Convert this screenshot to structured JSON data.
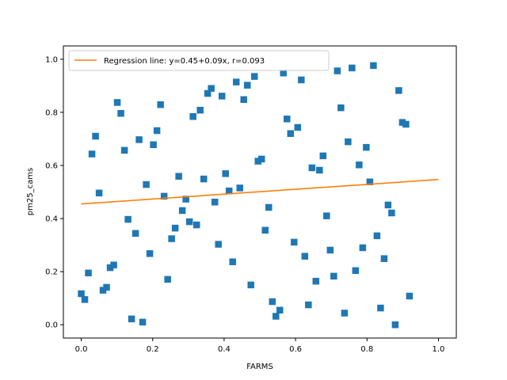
{
  "chart_data": {
    "type": "scatter",
    "xlabel": "FARMS",
    "ylabel": "pm25_cams",
    "xlim": [
      -0.05,
      1.05
    ],
    "ylim": [
      -0.05,
      1.05
    ],
    "xticks": [
      "0.0",
      "0.2",
      "0.4",
      "0.6",
      "0.8",
      "1.0"
    ],
    "yticks": [
      "0.0",
      "0.2",
      "0.4",
      "0.6",
      "0.8",
      "1.0"
    ],
    "grid": false,
    "legend_position": "top-left",
    "marker_color": "#1f77b4",
    "line_color": "#ff7f0e",
    "regression": {
      "label": "Regression line: y=0.45+0.09x, r=0.093",
      "intercept": 0.455,
      "slope": 0.092
    },
    "points": [
      {
        "x": 0.0,
        "y": 0.117
      },
      {
        "x": 0.01,
        "y": 0.095
      },
      {
        "x": 0.02,
        "y": 0.195
      },
      {
        "x": 0.03,
        "y": 0.643
      },
      {
        "x": 0.04,
        "y": 0.71
      },
      {
        "x": 0.05,
        "y": 0.496
      },
      {
        "x": 0.061,
        "y": 0.13
      },
      {
        "x": 0.071,
        "y": 0.141
      },
      {
        "x": 0.081,
        "y": 0.215
      },
      {
        "x": 0.091,
        "y": 0.225
      },
      {
        "x": 0.101,
        "y": 0.837
      },
      {
        "x": 0.111,
        "y": 0.796
      },
      {
        "x": 0.121,
        "y": 0.657
      },
      {
        "x": 0.131,
        "y": 0.397
      },
      {
        "x": 0.141,
        "y": 0.022
      },
      {
        "x": 0.152,
        "y": 0.344
      },
      {
        "x": 0.162,
        "y": 0.697
      },
      {
        "x": 0.172,
        "y": 0.01
      },
      {
        "x": 0.182,
        "y": 0.528
      },
      {
        "x": 0.192,
        "y": 0.268
      },
      {
        "x": 0.202,
        "y": 0.678
      },
      {
        "x": 0.212,
        "y": 0.731
      },
      {
        "x": 0.222,
        "y": 0.829
      },
      {
        "x": 0.232,
        "y": 0.484
      },
      {
        "x": 0.242,
        "y": 0.171
      },
      {
        "x": 0.253,
        "y": 0.324
      },
      {
        "x": 0.263,
        "y": 0.364
      },
      {
        "x": 0.273,
        "y": 0.559
      },
      {
        "x": 0.283,
        "y": 0.43
      },
      {
        "x": 0.293,
        "y": 0.473
      },
      {
        "x": 0.303,
        "y": 0.388
      },
      {
        "x": 0.313,
        "y": 0.784
      },
      {
        "x": 0.323,
        "y": 0.376
      },
      {
        "x": 0.333,
        "y": 0.808
      },
      {
        "x": 0.343,
        "y": 0.549
      },
      {
        "x": 0.354,
        "y": 0.871
      },
      {
        "x": 0.364,
        "y": 0.89
      },
      {
        "x": 0.374,
        "y": 0.462
      },
      {
        "x": 0.384,
        "y": 0.303
      },
      {
        "x": 0.394,
        "y": 0.861
      },
      {
        "x": 0.404,
        "y": 0.569
      },
      {
        "x": 0.414,
        "y": 0.504
      },
      {
        "x": 0.424,
        "y": 0.237
      },
      {
        "x": 0.434,
        "y": 0.914
      },
      {
        "x": 0.444,
        "y": 0.515
      },
      {
        "x": 0.455,
        "y": 0.848
      },
      {
        "x": 0.465,
        "y": 0.902
      },
      {
        "x": 0.475,
        "y": 0.15
      },
      {
        "x": 0.485,
        "y": 0.935
      },
      {
        "x": 0.495,
        "y": 0.616
      },
      {
        "x": 0.505,
        "y": 0.624
      },
      {
        "x": 0.515,
        "y": 0.356
      },
      {
        "x": 0.525,
        "y": 0.442
      },
      {
        "x": 0.535,
        "y": 0.087
      },
      {
        "x": 0.545,
        "y": 0.032
      },
      {
        "x": 0.556,
        "y": 0.055
      },
      {
        "x": 0.566,
        "y": 0.948
      },
      {
        "x": 0.576,
        "y": 0.775
      },
      {
        "x": 0.586,
        "y": 0.72
      },
      {
        "x": 0.596,
        "y": 0.311
      },
      {
        "x": 0.606,
        "y": 0.743
      },
      {
        "x": 0.616,
        "y": 0.922
      },
      {
        "x": 0.626,
        "y": 0.258
      },
      {
        "x": 0.636,
        "y": 0.075
      },
      {
        "x": 0.646,
        "y": 0.591
      },
      {
        "x": 0.657,
        "y": 0.164
      },
      {
        "x": 0.667,
        "y": 0.582
      },
      {
        "x": 0.677,
        "y": 0.636
      },
      {
        "x": 0.687,
        "y": 0.41
      },
      {
        "x": 0.697,
        "y": 0.281
      },
      {
        "x": 0.707,
        "y": 0.183
      },
      {
        "x": 0.717,
        "y": 0.956
      },
      {
        "x": 0.727,
        "y": 0.817
      },
      {
        "x": 0.737,
        "y": 0.044
      },
      {
        "x": 0.747,
        "y": 0.689
      },
      {
        "x": 0.758,
        "y": 0.967
      },
      {
        "x": 0.768,
        "y": 0.204
      },
      {
        "x": 0.778,
        "y": 0.602
      },
      {
        "x": 0.788,
        "y": 0.29
      },
      {
        "x": 0.798,
        "y": 0.668
      },
      {
        "x": 0.808,
        "y": 0.538
      },
      {
        "x": 0.818,
        "y": 0.976
      },
      {
        "x": 0.828,
        "y": 0.335
      },
      {
        "x": 0.838,
        "y": 0.063
      },
      {
        "x": 0.848,
        "y": 0.249
      },
      {
        "x": 0.859,
        "y": 0.451
      },
      {
        "x": 0.869,
        "y": 0.421
      },
      {
        "x": 0.879,
        "y": 0.0
      },
      {
        "x": 0.889,
        "y": 0.882
      },
      {
        "x": 0.899,
        "y": 0.762
      },
      {
        "x": 0.909,
        "y": 0.755
      },
      {
        "x": 0.919,
        "y": 0.108
      }
    ]
  }
}
